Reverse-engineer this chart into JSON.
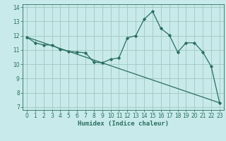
{
  "xlabel": "Humidex (Indice chaleur)",
  "bg_color": "#c8eaea",
  "grid_color": "#a0c8c0",
  "line_color": "#2a6e60",
  "xlim": [
    -0.5,
    23.5
  ],
  "ylim": [
    6.8,
    14.2
  ],
  "yticks": [
    7,
    8,
    9,
    10,
    11,
    12,
    13,
    14
  ],
  "xticks": [
    0,
    1,
    2,
    3,
    4,
    5,
    6,
    7,
    8,
    9,
    10,
    11,
    12,
    13,
    14,
    15,
    16,
    17,
    18,
    19,
    20,
    21,
    22,
    23
  ],
  "line1_x": [
    0,
    1,
    2,
    3,
    4,
    5,
    6,
    7,
    8,
    9,
    10,
    11,
    12,
    13,
    14,
    15,
    16,
    17,
    18,
    19,
    20,
    21,
    22,
    23
  ],
  "line1_y": [
    11.9,
    11.5,
    11.35,
    11.35,
    11.05,
    10.9,
    10.85,
    10.8,
    10.15,
    10.1,
    10.35,
    10.45,
    11.85,
    12.0,
    13.15,
    13.7,
    12.5,
    12.05,
    10.85,
    11.5,
    11.5,
    10.85,
    9.85,
    7.3
  ],
  "line2_x": [
    0,
    23
  ],
  "line2_y": [
    11.9,
    7.3
  ],
  "tick_fontsize": 5.5,
  "xlabel_fontsize": 6.5
}
